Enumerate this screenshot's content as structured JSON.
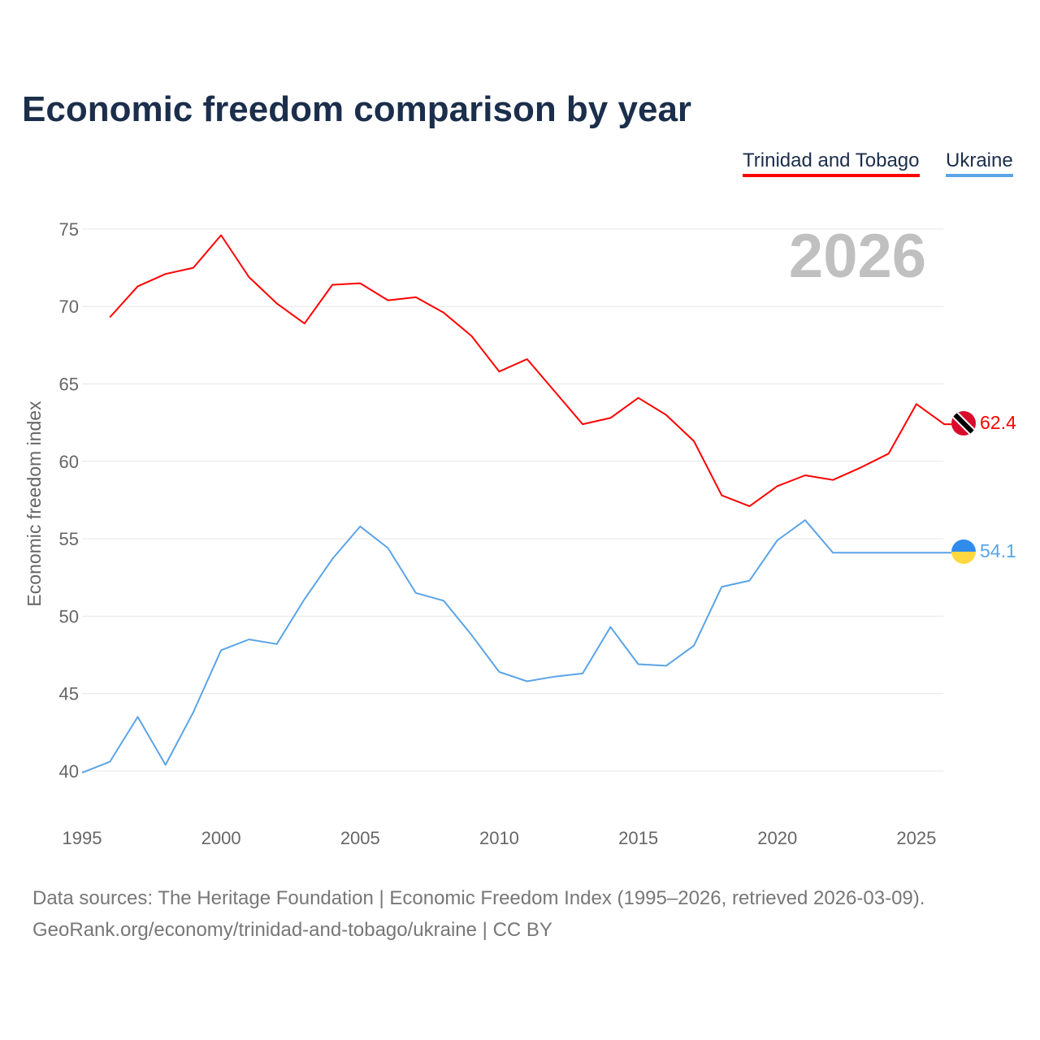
{
  "chart_data": {
    "type": "line",
    "title": "Economic freedom comparison by year",
    "ylabel": "Economic freedom index",
    "xlabel": "",
    "ylim": [
      37,
      76
    ],
    "xlim": [
      1995,
      2026.9
    ],
    "yticks": [
      40,
      45,
      50,
      55,
      60,
      65,
      70,
      75
    ],
    "xticks": [
      1995,
      2000,
      2005,
      2010,
      2015,
      2020,
      2025
    ],
    "grid": true,
    "legend_position": "top-right",
    "year_watermark": "2026",
    "series": [
      {
        "name": "Trinidad and Tobago",
        "color": "#ff0000",
        "end_label": "62.4",
        "x": [
          1996,
          1997,
          1998,
          1999,
          2000,
          2001,
          2002,
          2003,
          2004,
          2005,
          2006,
          2007,
          2008,
          2009,
          2010,
          2011,
          2012,
          2013,
          2014,
          2015,
          2016,
          2017,
          2018,
          2019,
          2020,
          2021,
          2022,
          2023,
          2024,
          2025,
          2026
        ],
        "values": [
          69.3,
          71.3,
          72.1,
          72.5,
          74.6,
          71.9,
          70.2,
          68.9,
          71.4,
          71.5,
          70.4,
          70.6,
          69.6,
          68.1,
          65.8,
          66.6,
          64.5,
          62.4,
          62.8,
          64.1,
          63.0,
          61.3,
          57.8,
          57.1,
          58.4,
          59.1,
          58.8,
          59.6,
          60.5,
          63.7,
          62.4
        ]
      },
      {
        "name": "Ukraine",
        "color": "#5ba4e6",
        "end_label": "54.1",
        "x": [
          1995,
          1996,
          1997,
          1998,
          1999,
          2000,
          2001,
          2002,
          2003,
          2004,
          2005,
          2006,
          2007,
          2008,
          2009,
          2010,
          2011,
          2012,
          2013,
          2014,
          2015,
          2016,
          2017,
          2018,
          2019,
          2020,
          2021,
          2022,
          2023,
          2024,
          2025,
          2026
        ],
        "values": [
          39.9,
          40.6,
          43.5,
          40.4,
          43.8,
          47.8,
          48.5,
          48.2,
          51.1,
          53.7,
          55.8,
          54.4,
          51.5,
          51.0,
          48.8,
          46.4,
          45.8,
          46.1,
          46.3,
          49.3,
          46.9,
          46.8,
          48.1,
          51.9,
          52.3,
          54.9,
          56.2,
          54.1,
          54.1,
          54.1,
          54.1,
          54.1
        ]
      }
    ]
  },
  "footer": {
    "line1": "Data sources: The Heritage Foundation | Economic Freedom Index (1995–2026, retrieved 2026-03-09).",
    "line2": "GeoRank.org/economy/trinidad-and-tobago/ukraine | CC BY"
  }
}
